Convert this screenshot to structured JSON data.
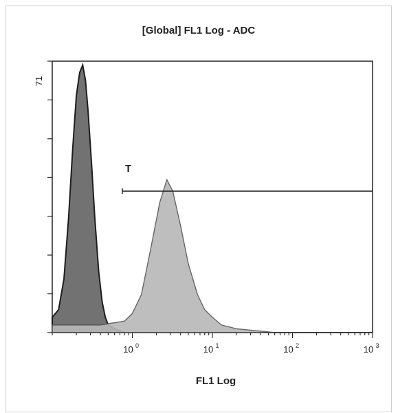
{
  "chart_data": {
    "type": "area",
    "title": "[Global] FL1 Log - ADC",
    "xlabel": "FL1 Log",
    "ylabel": "",
    "xscale": "log",
    "xlim": [
      0.1,
      1000
    ],
    "ylim": [
      0,
      71
    ],
    "y_tick_label": "71",
    "x_tick_labels": [
      {
        "base": "10",
        "exp": "0",
        "value": 1
      },
      {
        "base": "10",
        "exp": "1",
        "value": 10
      },
      {
        "base": "10",
        "exp": "2",
        "value": 100
      },
      {
        "base": "10",
        "exp": "3",
        "value": 1000
      }
    ],
    "series": [
      {
        "fill": "#6b6b6b",
        "stroke": "#111111",
        "points": [
          [
            0.1,
            4
          ],
          [
            0.12,
            6
          ],
          [
            0.14,
            14
          ],
          [
            0.16,
            30
          ],
          [
            0.18,
            48
          ],
          [
            0.2,
            62
          ],
          [
            0.22,
            68
          ],
          [
            0.24,
            70
          ],
          [
            0.26,
            66
          ],
          [
            0.28,
            58
          ],
          [
            0.31,
            44
          ],
          [
            0.34,
            30
          ],
          [
            0.38,
            16
          ],
          [
            0.42,
            8
          ],
          [
            0.46,
            4
          ],
          [
            0.5,
            2
          ],
          [
            0.6,
            1
          ],
          [
            0.8,
            0
          ],
          [
            1000,
            0
          ]
        ]
      },
      {
        "fill": "#b8b8b8",
        "stroke": "#555555",
        "points": [
          [
            0.1,
            2
          ],
          [
            0.2,
            2
          ],
          [
            0.4,
            2
          ],
          [
            0.8,
            3
          ],
          [
            1.0,
            5
          ],
          [
            1.3,
            10
          ],
          [
            1.7,
            22
          ],
          [
            2.2,
            34
          ],
          [
            2.7,
            40
          ],
          [
            3.2,
            37
          ],
          [
            4.0,
            28
          ],
          [
            5.0,
            18
          ],
          [
            6.5,
            10
          ],
          [
            8.0,
            6
          ],
          [
            10,
            4
          ],
          [
            13,
            2
          ],
          [
            20,
            1
          ],
          [
            40,
            0.4
          ],
          [
            60,
            0
          ],
          [
            1000,
            0
          ]
        ]
      }
    ],
    "gate": {
      "label": "T",
      "x_start": 0.75,
      "x_end": 1000,
      "y": 37
    }
  }
}
